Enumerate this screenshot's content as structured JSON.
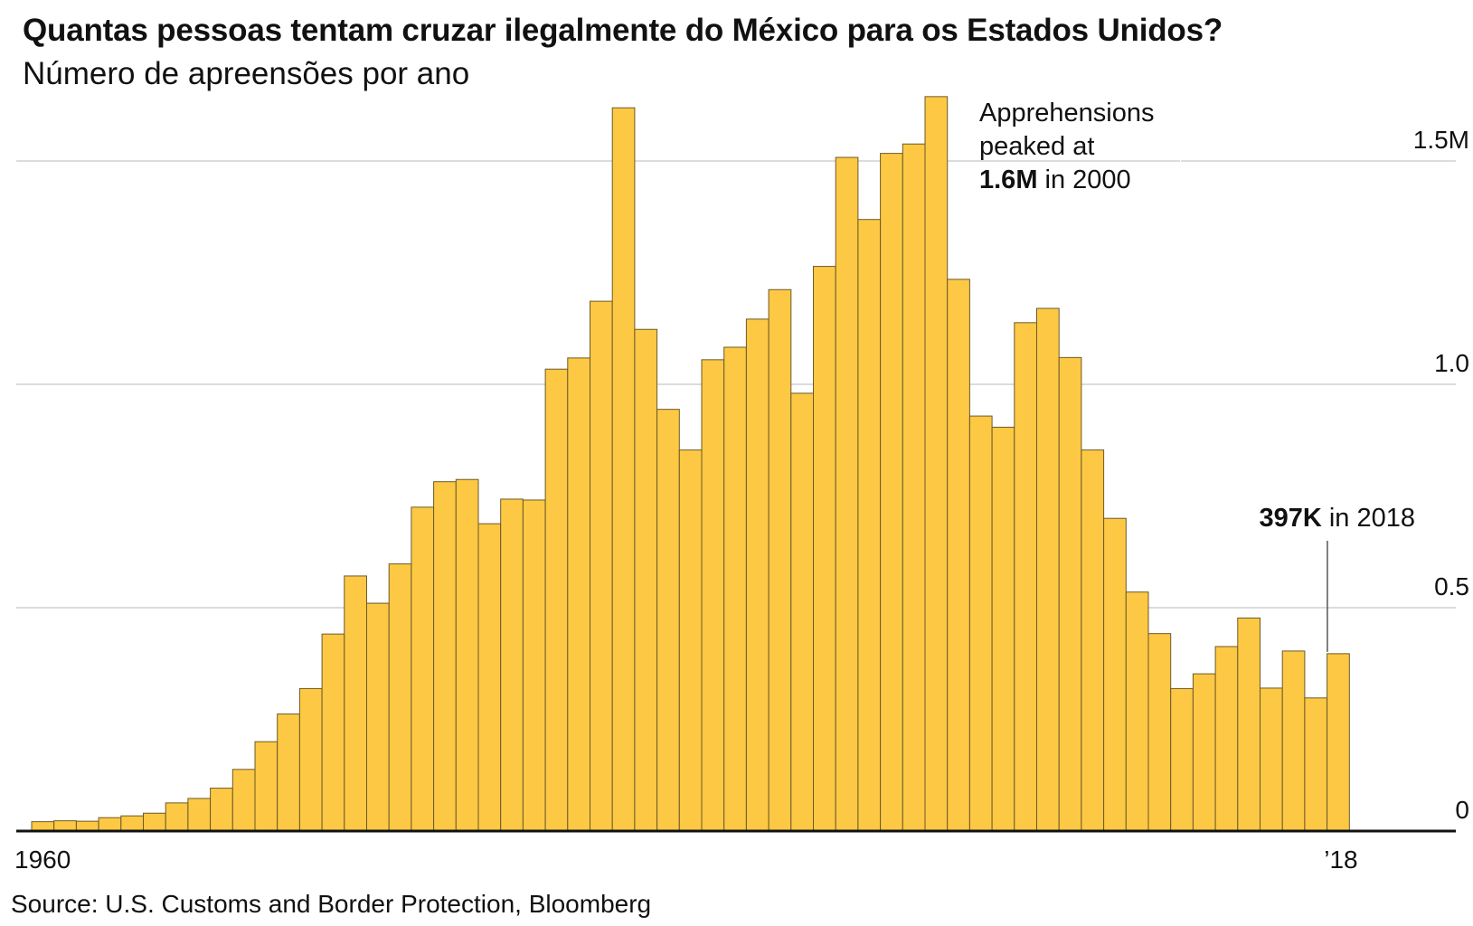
{
  "header": {
    "title": "Quantas pessoas tentam cruzar ilegalmente do México para os Estados Unidos?",
    "subtitle": "Número de apreensões por ano"
  },
  "footer": {
    "source": "Source: U.S. Customs and Border Protection, Bloomberg"
  },
  "colors": {
    "bar": "#FDC844",
    "bar_stroke": "#6b5a2a",
    "grid": "#c8c8c8",
    "axis": "#111111"
  },
  "chart_data": {
    "type": "bar",
    "title": "Quantas pessoas tentam cruzar ilegalmente do México para os Estados Unidos?",
    "subtitle": "Número de apreensões por ano",
    "xlabel": "",
    "ylabel": "",
    "ylim": [
      0,
      1.65
    ],
    "grid": true,
    "y_ticks": [
      {
        "value": 0,
        "label": "0"
      },
      {
        "value": 0.5,
        "label": "0.5"
      },
      {
        "value": 1.0,
        "label": "1.0"
      },
      {
        "value": 1.5,
        "label": "1.5M"
      }
    ],
    "x_tick_labels": [
      {
        "year": 1960,
        "label": "1960"
      },
      {
        "year": 2018,
        "label": "’18"
      }
    ],
    "categories": [
      1960,
      1961,
      1962,
      1963,
      1964,
      1965,
      1966,
      1967,
      1968,
      1969,
      1970,
      1971,
      1972,
      1973,
      1974,
      1975,
      1976,
      1977,
      1978,
      1979,
      1980,
      1981,
      1982,
      1983,
      1984,
      1985,
      1986,
      1987,
      1988,
      1989,
      1990,
      1991,
      1992,
      1993,
      1994,
      1995,
      1996,
      1997,
      1998,
      1999,
      2000,
      2001,
      2002,
      2003,
      2004,
      2005,
      2006,
      2007,
      2008,
      2009,
      2010,
      2011,
      2012,
      2013,
      2014,
      2015,
      2016,
      2017,
      2018
    ],
    "values": [
      0.021,
      0.023,
      0.022,
      0.03,
      0.034,
      0.04,
      0.063,
      0.073,
      0.096,
      0.138,
      0.2,
      0.262,
      0.319,
      0.441,
      0.571,
      0.51,
      0.598,
      0.725,
      0.782,
      0.787,
      0.688,
      0.743,
      0.741,
      1.034,
      1.059,
      1.186,
      1.619,
      1.123,
      0.944,
      0.853,
      1.055,
      1.083,
      1.146,
      1.212,
      0.98,
      1.264,
      1.508,
      1.369,
      1.517,
      1.538,
      1.644,
      1.235,
      0.929,
      0.904,
      1.138,
      1.17,
      1.06,
      0.853,
      0.7,
      0.535,
      0.442,
      0.319,
      0.352,
      0.413,
      0.477,
      0.32,
      0.403,
      0.298,
      0.397
    ],
    "annotations": [
      {
        "year": 2000,
        "lines": [
          [
            {
              "text": "Apprehensions",
              "bold": false
            }
          ],
          [
            {
              "text": "peaked at",
              "bold": false
            }
          ],
          [
            {
              "text": "1.6M",
              "bold": true
            },
            {
              "text": " in 2000",
              "bold": false
            }
          ]
        ]
      },
      {
        "year": 2018,
        "lines": [
          [
            {
              "text": "397K",
              "bold": true
            },
            {
              "text": " in 2018",
              "bold": false
            }
          ]
        ]
      }
    ]
  }
}
